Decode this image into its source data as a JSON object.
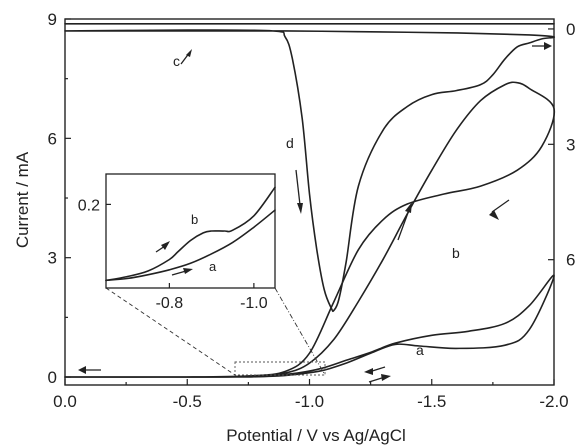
{
  "chart_data": {
    "type": "line",
    "xlabel": "Potential / V vs Ag/AgCl",
    "ylabel": "Current  / mA",
    "xlim": [
      0.0,
      -2.0
    ],
    "ylim": [
      -0.2,
      9.0
    ],
    "x_ticks": [
      "0.0",
      "-0.5",
      "-1.0",
      "-1.5",
      "-2.0"
    ],
    "x_tick_values": [
      0.0,
      -0.5,
      -1.0,
      -1.5,
      -2.0
    ],
    "y_ticks": [
      "0",
      "3",
      "6",
      "9"
    ],
    "y_tick_values": [
      0,
      3,
      6,
      9
    ],
    "right_axis": {
      "visible_tick_labels": [
        "0",
        "3",
        "6"
      ],
      "inverted": true
    },
    "grid": false,
    "legend": "none",
    "series": [
      {
        "name": "a",
        "x": [
          0.0,
          -0.4,
          -0.7,
          -0.85,
          -0.95,
          -1.05,
          -1.15,
          -1.25,
          -1.35,
          -1.5,
          -1.65,
          -1.8,
          -1.9,
          -2.0,
          -1.9,
          -1.8,
          -1.6,
          -1.45,
          -1.35,
          -1.25,
          -1.15,
          -1.05,
          -0.95,
          -0.85,
          -0.7,
          -0.4,
          0.0
        ],
        "y": [
          0.0,
          0.0,
          0.0,
          0.04,
          0.1,
          0.22,
          0.42,
          0.62,
          0.85,
          1.05,
          1.15,
          1.35,
          1.8,
          2.55,
          1.2,
          0.8,
          0.72,
          0.78,
          0.82,
          0.6,
          0.35,
          0.16,
          0.07,
          0.02,
          0.0,
          0.0,
          0.0
        ]
      },
      {
        "name": "b",
        "x": [
          0.0,
          -0.5,
          -0.75,
          -0.9,
          -1.0,
          -1.1,
          -1.2,
          -1.3,
          -1.4,
          -1.5,
          -1.6,
          -1.7,
          -1.8,
          -1.85,
          -1.9,
          -2.0,
          -1.95,
          -1.85,
          -1.7,
          -1.55,
          -1.4,
          -1.3,
          -1.2,
          -1.1,
          -1.0,
          -0.9,
          -0.75,
          -0.5,
          0.0
        ],
        "y": [
          0.0,
          0.0,
          0.02,
          0.1,
          0.35,
          0.95,
          1.9,
          2.95,
          4.1,
          5.2,
          6.2,
          6.95,
          7.35,
          7.4,
          7.25,
          6.75,
          5.8,
          5.2,
          4.8,
          4.6,
          4.35,
          3.95,
          3.2,
          1.9,
          0.6,
          0.14,
          0.03,
          0.0,
          0.0
        ]
      },
      {
        "name": "c",
        "x": [
          0.0,
          -0.5,
          -1.0,
          -1.5,
          -2.0
        ],
        "y": [
          8.88,
          8.88,
          8.88,
          8.88,
          8.88
        ]
      },
      {
        "name": "d",
        "x": [
          0.0,
          -0.5,
          -0.85,
          -0.9,
          -0.93,
          -0.97,
          -1.0,
          -1.03,
          -1.06,
          -1.09,
          -1.1,
          -1.12,
          -1.15,
          -1.2,
          -1.3,
          -1.4,
          -1.5,
          -1.6,
          -1.7,
          -1.75,
          -1.8,
          -1.85,
          -1.9,
          -1.95,
          -2.0,
          -1.9,
          -1.6,
          -1.2,
          -0.9,
          -0.5,
          0.0
        ],
        "y": [
          8.7,
          8.72,
          8.7,
          8.55,
          8.0,
          6.5,
          4.6,
          3.2,
          2.2,
          1.72,
          1.68,
          1.95,
          2.9,
          4.8,
          6.2,
          6.8,
          7.1,
          7.2,
          7.35,
          7.6,
          8.0,
          8.3,
          8.4,
          8.5,
          8.55,
          8.6,
          8.65,
          8.68,
          8.7,
          8.7,
          8.7
        ]
      }
    ],
    "inset": {
      "x_ticks": [
        "-0.8",
        "-1.0"
      ],
      "x_tick_values": [
        -0.8,
        -1.0
      ],
      "y_ticks": [
        "0.2"
      ],
      "y_tick_values": [
        0.2
      ],
      "xlim": [
        -0.65,
        -1.05
      ],
      "ylim": [
        -0.02,
        0.28
      ],
      "series": [
        {
          "name": "a",
          "x": [
            -0.65,
            -0.7,
            -0.75,
            -0.8,
            -0.85,
            -0.9,
            -0.95,
            -1.0,
            -1.05
          ],
          "y": [
            0.0,
            0.005,
            0.015,
            0.028,
            0.045,
            0.07,
            0.1,
            0.14,
            0.185
          ]
        },
        {
          "name": "b",
          "x": [
            -0.65,
            -0.7,
            -0.75,
            -0.8,
            -0.82,
            -0.85,
            -0.88,
            -0.9,
            -0.93,
            -0.95,
            -1.0,
            -1.05
          ],
          "y": [
            0.0,
            0.01,
            0.025,
            0.055,
            0.075,
            0.105,
            0.125,
            0.13,
            0.13,
            0.132,
            0.17,
            0.245
          ]
        }
      ]
    }
  }
}
